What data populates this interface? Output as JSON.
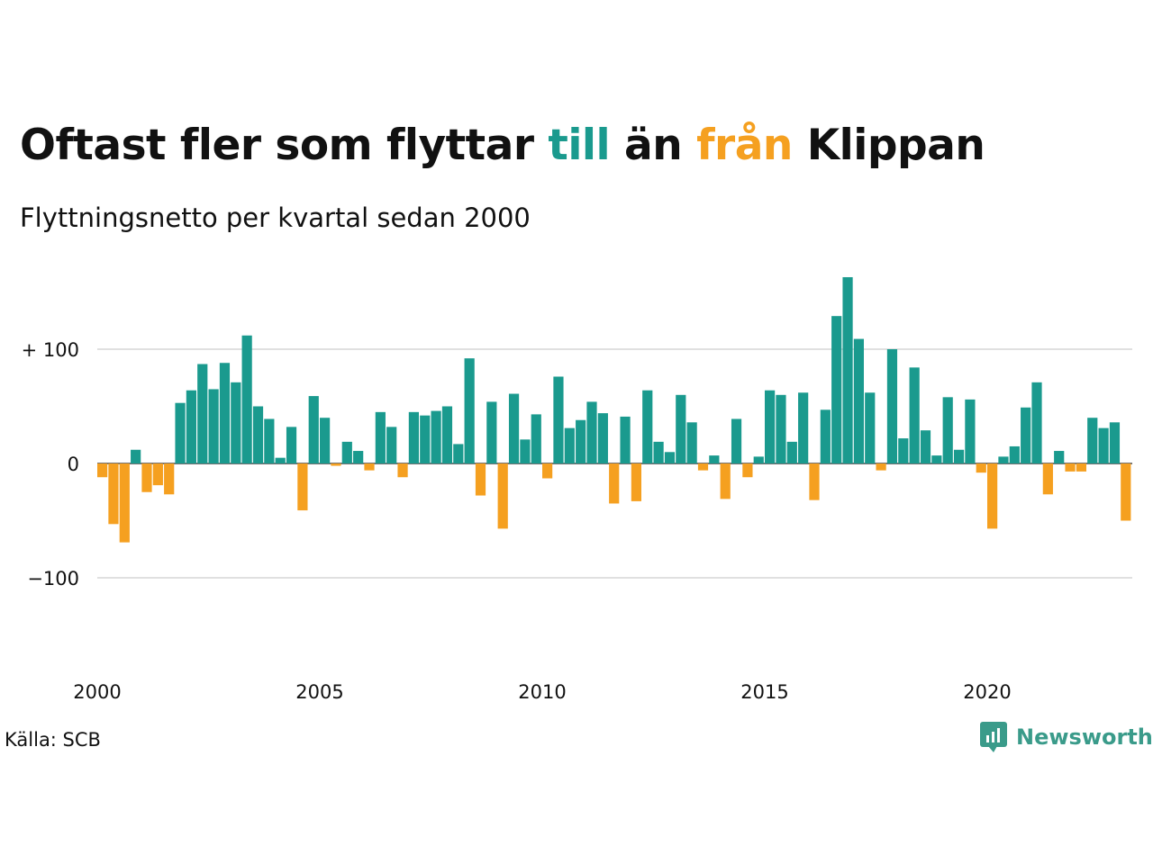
{
  "title": {
    "part1": "Oftast fler som flyttar ",
    "highlight_pos": "till",
    "part2": " än ",
    "highlight_neg": "från",
    "part3": " Klippan"
  },
  "subtitle": "Flyttningsnetto per kvartal sedan 2000",
  "source": "Källa: SCB",
  "brand": "Newsworthy",
  "colors": {
    "positive": "#1a9a8e",
    "negative": "#f5a020",
    "grid": "#e0e0e0",
    "text": "#111111",
    "brand": "#3a9b8a"
  },
  "chart_data": {
    "type": "bar",
    "x_start": "2000 Q1",
    "x_ticks": [
      "2000",
      "2005",
      "2010",
      "2015",
      "2020"
    ],
    "y_ticks": [
      {
        "value": 100,
        "label": "+ 100"
      },
      {
        "value": 0,
        "label": "0"
      },
      {
        "value": -100,
        "label": "−100"
      }
    ],
    "ylim": [
      -160,
      170
    ],
    "grid": true,
    "values": [
      -12,
      -53,
      -69,
      12,
      -25,
      -19,
      -27,
      53,
      64,
      87,
      65,
      88,
      71,
      112,
      50,
      39,
      5,
      32,
      -41,
      59,
      40,
      -2,
      19,
      11,
      -6,
      45,
      32,
      -12,
      45,
      42,
      46,
      50,
      17,
      92,
      -28,
      54,
      -57,
      61,
      21,
      43,
      -13,
      76,
      31,
      38,
      54,
      44,
      -35,
      41,
      -33,
      64,
      19,
      10,
      60,
      36,
      -6,
      7,
      -31,
      39,
      -12,
      6,
      64,
      60,
      19,
      62,
      -32,
      47,
      129,
      163,
      109,
      62,
      -6,
      100,
      22,
      84,
      29,
      7,
      58,
      12,
      56,
      -8,
      -57,
      6,
      15,
      49,
      71,
      -27,
      11,
      -7,
      -7,
      40,
      31,
      36,
      -50
    ]
  }
}
